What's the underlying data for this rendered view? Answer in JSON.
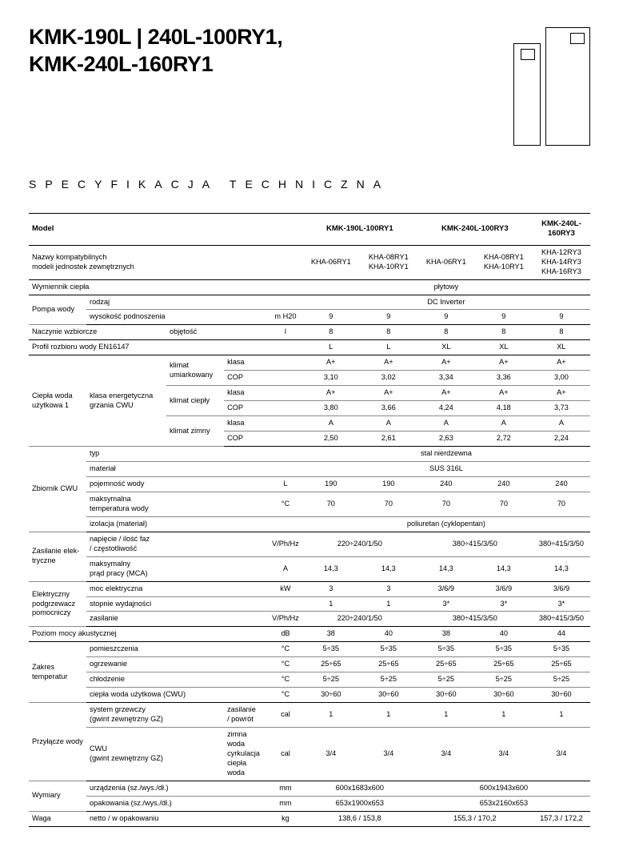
{
  "title_line1": "KMK-190L | 240L-100RY1,",
  "title_line2": "KMK-240L-160RY1",
  "subtitle": "SPECYFIKACJA TECHNICZNA",
  "header": {
    "model": "Model",
    "models": [
      "KMK-190L-100RY1",
      "KMK-240L-100RY3",
      "KMK-240L-160RY3"
    ]
  },
  "compat": {
    "label_l1": "Nazwy kompatybilnych",
    "label_l2": "modeli jednostek zewnętrznych",
    "v1": "KHA-06RY1",
    "v2_l1": "KHA-08RY1",
    "v2_l2": "KHA-10RY1",
    "v3": "KHA-06RY1",
    "v4_l1": "KHA-08RY1",
    "v4_l2": "KHA-10RY1",
    "v5_l1": "KHA-12RY3",
    "v5_l2": "KHA-14RY3",
    "v5_l3": "KHA-16RY3"
  },
  "labels": {
    "wymiennik": "Wymiennik ciepła",
    "pompa": "Pompa wody",
    "rodzaj": "rodzaj",
    "wys_podn": "wysokość podnoszenia",
    "naczynie": "Naczynie wzbiorcze",
    "objetosc": "objętość",
    "profil": "Profil rozbioru wody EN16147",
    "cwu1_l1": "Ciepła woda",
    "cwu1_l2": "użytkowa 1",
    "klasa_energ_l1": "klasa energetyczna",
    "klasa_energ_l2": "grzania CWU",
    "klimat_umiark_l1": "klimat",
    "klimat_umiark_l2": "umiarkowany",
    "klimat_ciep": "klimat ciepły",
    "klimat_zimny": "klimat zimny",
    "klasa": "klasa",
    "cop": "COP",
    "zbiornik": "Zbiornik CWU",
    "typ": "typ",
    "material": "materiał",
    "pojemnosc": "pojemność wody",
    "maks_temp_l1": "maksymalna",
    "maks_temp_l2": "temperatura wody",
    "izolacja": "izolacja (materiał)",
    "zasilanie_elek_l1": "Zasilanie elek-",
    "zasilanie_elek_l2": "tryczne",
    "napiecie_l1": "napięcie / ilość faz",
    "napiecie_l2": "/ częstotliwość",
    "mca_l1": "maksymalny",
    "mca_l2": "prąd pracy (MCA)",
    "podgrz_l1": "Elektryczny",
    "podgrz_l2": "podgrzewacz",
    "podgrz_l3": "pomocniczy",
    "moc_elek": "moc elektryczna",
    "stopnie": "stopnie wydajności",
    "zasilanie": "zasilanie",
    "poziom_mocy": "Poziom mocy akustycznej",
    "zakres_l1": "Zakres",
    "zakres_l2": "temperatur",
    "pomieszczenia": "pomieszczenia",
    "ogrzewanie": "ogrzewanie",
    "chlodzenie": "chłodzenie",
    "cwu_row": "ciepła woda użytkowa (CWU)",
    "przylacze": "Przyłącze wody",
    "sys_grzew_l1": "system grzewczy",
    "sys_grzew_l2": "(gwint zewnętrzny GZ)",
    "zas_pow_l1": "zasilanie",
    "zas_pow_l2": "/ powrót",
    "cwu_gz_l1": "CWU",
    "cwu_gz_l2": "(gwint zewnętrzny GZ)",
    "zimna_l1": "zimna woda",
    "zimna_l2": "cyrkulacja",
    "zimna_l3": "ciepła woda",
    "wymiary": "Wymiary",
    "urzad": "urządzenia (sz./wys./dł.)",
    "opak": "opakowania (sz./wys./dł.)",
    "waga": "Waga",
    "netto": "netto / w opakowaniu"
  },
  "units": {
    "mh2o": "m H20",
    "l": "l",
    "litre": "L",
    "degC": "°C",
    "vphhz": "V/Ph/Hz",
    "A": "A",
    "kW": "kW",
    "dB": "dB",
    "cal": "cal",
    "mm": "mm",
    "kg": "kg"
  },
  "vals": {
    "plytowy": "płytowy",
    "dcinv": "DC Inverter",
    "nine": "9",
    "eight": "8",
    "profil": [
      "L",
      "L",
      "XL",
      "XL",
      "XL"
    ],
    "umiark_klasa": [
      "A+",
      "A+",
      "A+",
      "A+",
      "A+"
    ],
    "umiark_cop": [
      "3,10",
      "3,02",
      "3,34",
      "3,36",
      "3,00"
    ],
    "ciep_klasa": [
      "A+",
      "A+",
      "A+",
      "A+",
      "A+"
    ],
    "ciep_cop": [
      "3,80",
      "3,66",
      "4,24",
      "4,18",
      "3,73"
    ],
    "zimny_klasa": [
      "A",
      "A",
      "A",
      "A",
      "A"
    ],
    "zimny_cop": [
      "2,50",
      "2,61",
      "2,63",
      "2,72",
      "2,24"
    ],
    "typ": "stal nierdzewna",
    "material": "SUS 316L",
    "pojemnosc": [
      "190",
      "190",
      "240",
      "240",
      "240"
    ],
    "maks_temp": [
      "70",
      "70",
      "70",
      "70",
      "70"
    ],
    "izolacja": "poliuretan (cyklopentan)",
    "napiecie_12": "220÷240/1/50",
    "napiecie_34": "380÷415/3/50",
    "napiecie_5": "380÷415/3/50",
    "mca": [
      "14,3",
      "14,3",
      "14,3",
      "14,3",
      "14,3"
    ],
    "moc": [
      "3",
      "3",
      "3/6/9",
      "3/6/9",
      "3/6/9"
    ],
    "stopnie": [
      "1",
      "1",
      "3*",
      "3*",
      "3*"
    ],
    "zas_12": "220÷240/1/50",
    "zas_34": "380÷415/3/50",
    "zas_5": "380÷415/3/50",
    "db": [
      "38",
      "40",
      "38",
      "40",
      "44"
    ],
    "pomieszczenia": [
      "5÷35",
      "5÷35",
      "5÷35",
      "5÷35",
      "5÷35"
    ],
    "ogrzewanie": [
      "25÷65",
      "25÷65",
      "25÷65",
      "25÷65",
      "25÷65"
    ],
    "chlodzenie": [
      "5÷25",
      "5÷25",
      "5÷25",
      "5÷25",
      "5÷25"
    ],
    "cwu_temp": [
      "30÷60",
      "30÷60",
      "30÷60",
      "30÷60",
      "30÷60"
    ],
    "zas_pow": [
      "1",
      "1",
      "1",
      "1",
      "1"
    ],
    "zimna": [
      "3/4",
      "3/4",
      "3/4",
      "3/4",
      "3/4"
    ],
    "urzad_12": "600x1683x600",
    "urzad_345": "600x1943x600",
    "opak_12": "653x1900x653",
    "opak_345": "653x2160x653",
    "waga_12": "138,6 / 153,8",
    "waga_34": "155,3 / 170,2",
    "waga_5": "157,3 / 172,2"
  }
}
